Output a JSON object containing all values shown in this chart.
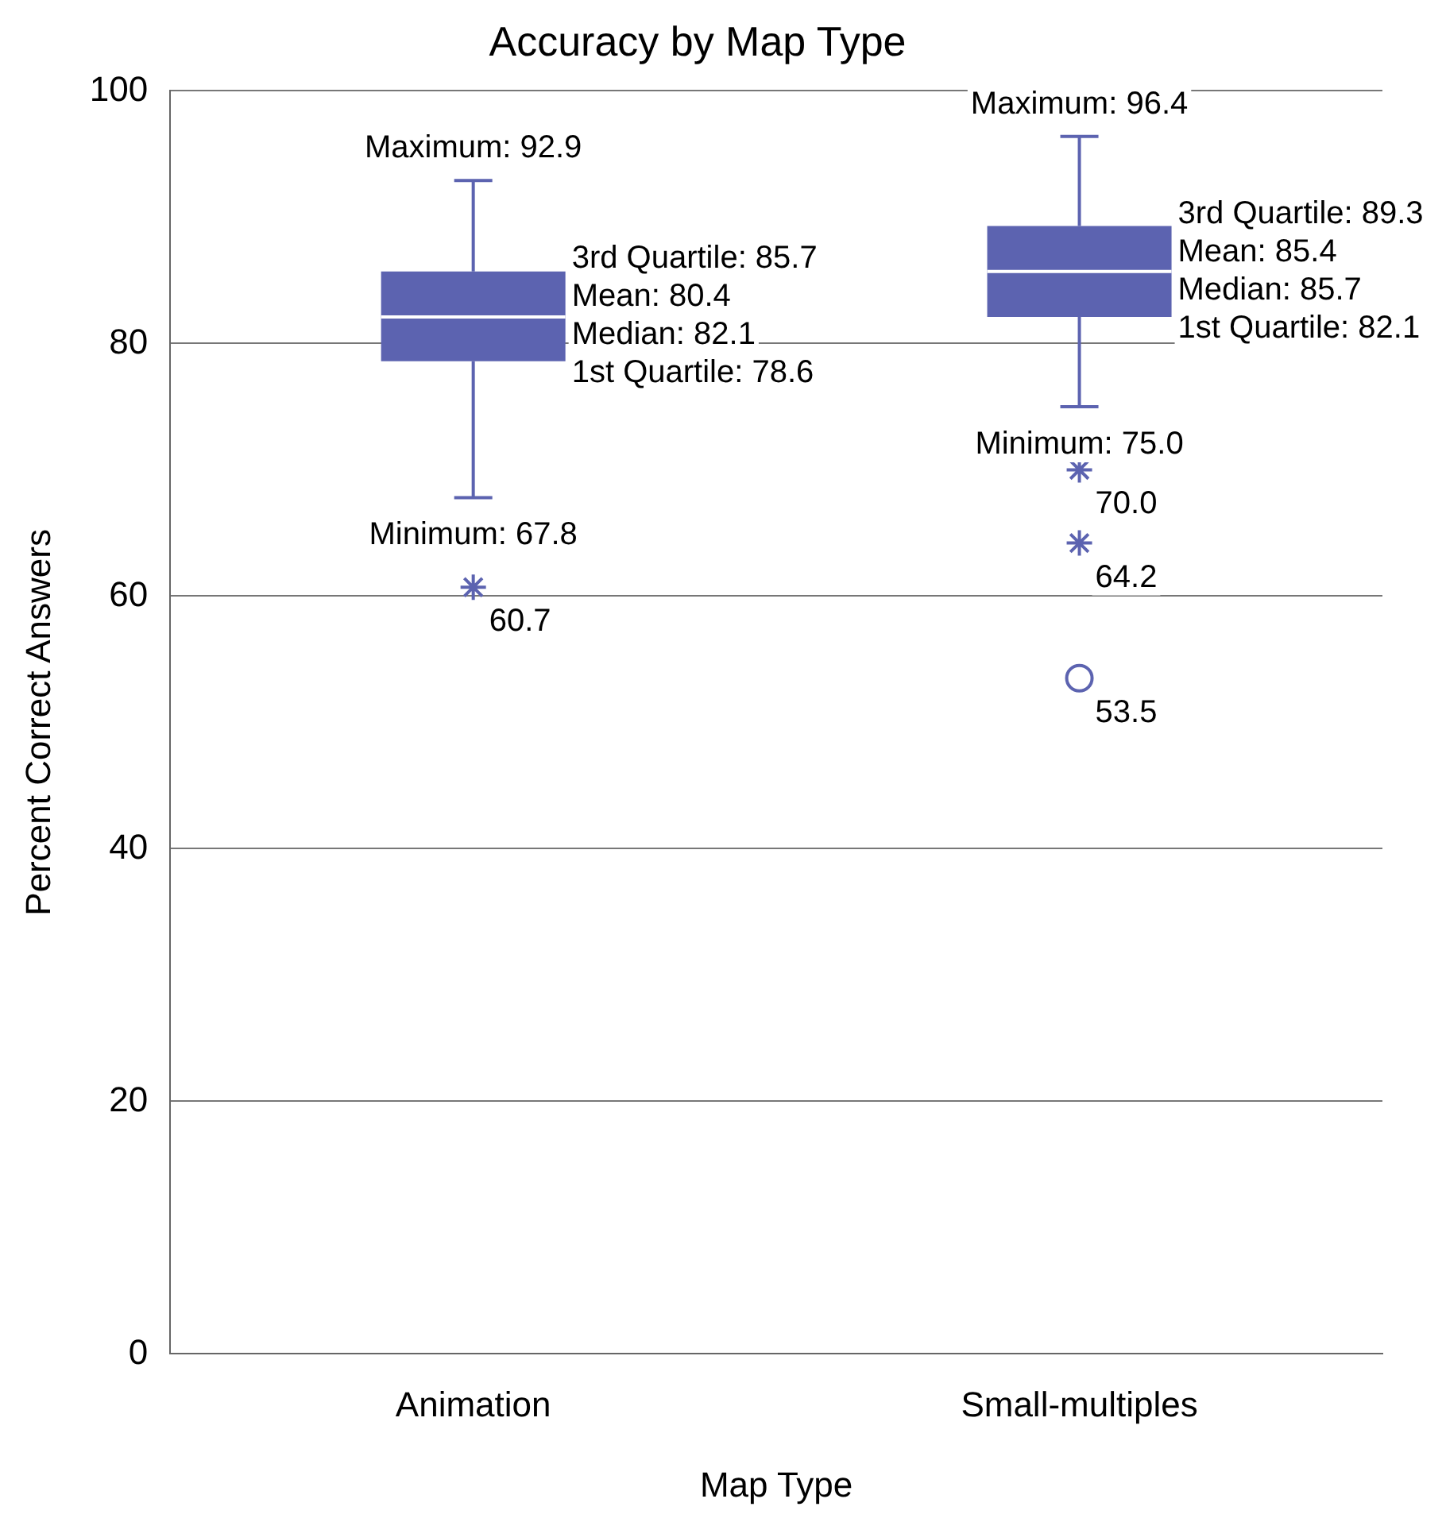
{
  "chart_data": {
    "type": "box",
    "title": "Accuracy by Map Type",
    "xlabel": "Map Type",
    "ylabel": "Percent Correct Answers",
    "categories": [
      "Animation",
      "Small-multiples"
    ],
    "boxes": [
      {
        "low": 67.8,
        "q1": 78.6,
        "median": 82.1,
        "q3": 85.7,
        "high": 92.9
      },
      {
        "low": 75.0,
        "q1": 82.1,
        "median": 85.7,
        "q3": 89.3,
        "high": 96.4
      }
    ],
    "color": "#5c63b0",
    "series": [
      {
        "type": "scatter",
        "marker": "cross",
        "color": "#5c63b0",
        "x": [
          "Animation",
          "Small-multiples",
          "Small-multiples"
        ],
        "values": [
          60.7,
          70.0,
          64.2
        ],
        "value_labels": [
          "60.7",
          "70.0",
          "64.2"
        ]
      },
      {
        "type": "scatter",
        "marker": "circle",
        "color": "#5c63b0",
        "x": [
          "Small-multiples"
        ],
        "values": [
          53.5
        ],
        "value_labels": [
          "53.5"
        ]
      }
    ],
    "ylim": [
      0,
      100
    ],
    "yticks": [
      0,
      20,
      40,
      60,
      80,
      100
    ],
    "grid": "y",
    "legend": false,
    "annotations": [
      {
        "text": "Maximum: 92.9",
        "x": "Animation",
        "y": 92.9
      },
      "3rd Quartile: 85.7",
      "Mean: 80.4",
      "Median: 82.1",
      "1st Quartile: 78.6",
      {
        "text": "Minimum: 67.8",
        "x": "Animation",
        "y": 67.8
      },
      {
        "text": "Maximum: 96.4",
        "x": "Small-multiples",
        "y": 96.4
      },
      "3rd Quartile: 89.3",
      "Mean: 85.4",
      "Median: 85.7",
      "1st Quartile: 82.1",
      {
        "text": "Minimum: 75.0",
        "x": "Small-multiples",
        "y": 75.0
      }
    ]
  }
}
